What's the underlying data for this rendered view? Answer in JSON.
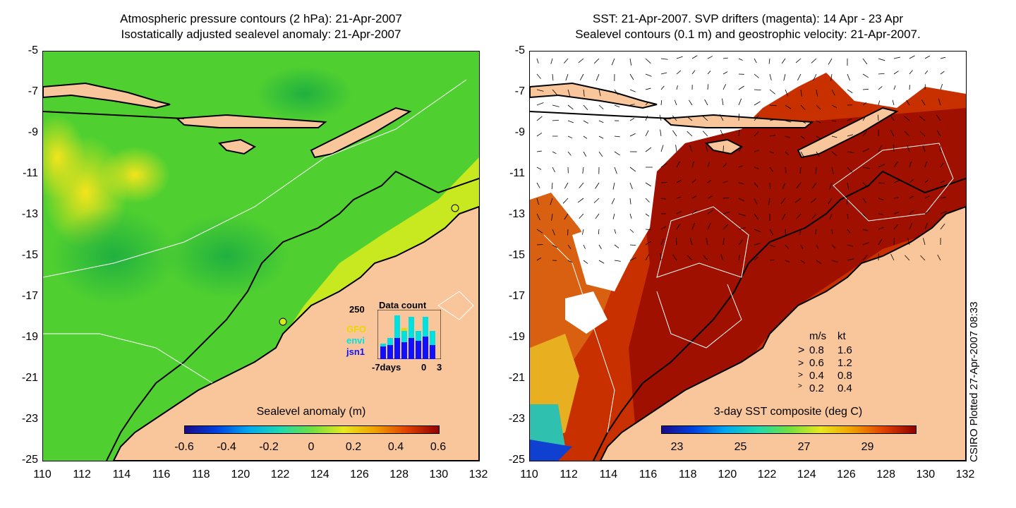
{
  "left_panel": {
    "title_line1": "Atmospheric pressure contours (2 hPa): 21-Apr-2007",
    "title_line2": "Isostatically adjusted sealevel anomaly: 21-Apr-2007",
    "colorbar": {
      "title": "Sealevel anomaly (m)",
      "ticks": [
        "-0.6",
        "-0.4",
        "-0.2",
        "0",
        "0.2",
        "0.4",
        "0.6"
      ],
      "range": [
        -0.6,
        0.6
      ]
    },
    "inset": {
      "title": "Data count",
      "ymax_label": "250",
      "series_labels": [
        "GFO",
        "envi",
        "jsn1"
      ],
      "series_colors": [
        "#e8d800",
        "#00e0e0",
        "#1010ff"
      ],
      "x_labels": [
        "-7days",
        "0",
        "3"
      ]
    }
  },
  "right_panel": {
    "title_line1": "SST: 21-Apr-2007. SVP drifters (magenta): 14 Apr - 23 Apr",
    "title_line2": "Sealevel contours (0.1 m) and geostrophic velocity: 21-Apr-2007.",
    "colorbar": {
      "title": "3-day SST composite (deg C)",
      "ticks": [
        "23",
        "25",
        "27",
        "29"
      ],
      "range": [
        22.5,
        30.5
      ]
    },
    "velocity_legend": {
      "header_ms": "m/s",
      "header_kt": "kt",
      "rows": [
        {
          "ms": "0.8",
          "kt": "1.6"
        },
        {
          "ms": "0.6",
          "kt": "1.2"
        },
        {
          "ms": "0.4",
          "kt": "0.8"
        },
        {
          "ms": "0.2",
          "kt": "0.4"
        }
      ]
    }
  },
  "axes": {
    "y_ticks": [
      "-5",
      "-7",
      "-9",
      "-11",
      "-13",
      "-15",
      "-17",
      "-19",
      "-21",
      "-23",
      "-25"
    ],
    "x_ticks": [
      "110",
      "112",
      "114",
      "116",
      "118",
      "120",
      "122",
      "124",
      "126",
      "128",
      "130",
      "132"
    ],
    "lon_range": [
      110,
      132
    ],
    "lat_range": [
      -25,
      -5
    ]
  },
  "credit": "CSIRO Plotted 27-Apr-2007 08:33",
  "colors": {
    "land": "#f9c69c",
    "coast": "#000000",
    "sst_warm": "#a01000",
    "sla_green": "#38c838",
    "sla_yellow": "#d4ec1c"
  }
}
